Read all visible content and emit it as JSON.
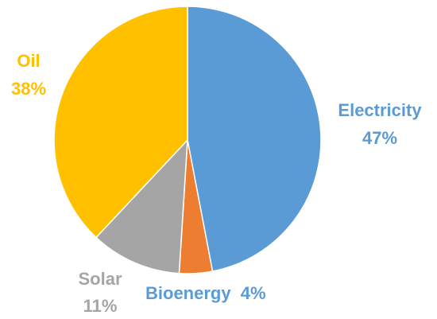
{
  "chart_data": {
    "type": "pie",
    "title": "",
    "slices": [
      {
        "label": "Electricity",
        "value": 47,
        "display": "47%",
        "color": "#5B9BD5"
      },
      {
        "label": "Bioenergy",
        "value": 4,
        "display": "4%",
        "color": "#ED7D31"
      },
      {
        "label": "Solar",
        "value": 11,
        "display": "11%",
        "color": "#A5A5A5"
      },
      {
        "label": "Oil",
        "value": 38,
        "display": "38%",
        "color": "#FFC000"
      }
    ],
    "start_angle_deg": 0,
    "direction": "clockwise",
    "legend": "none",
    "data_labels": "outside, category name and percent"
  }
}
